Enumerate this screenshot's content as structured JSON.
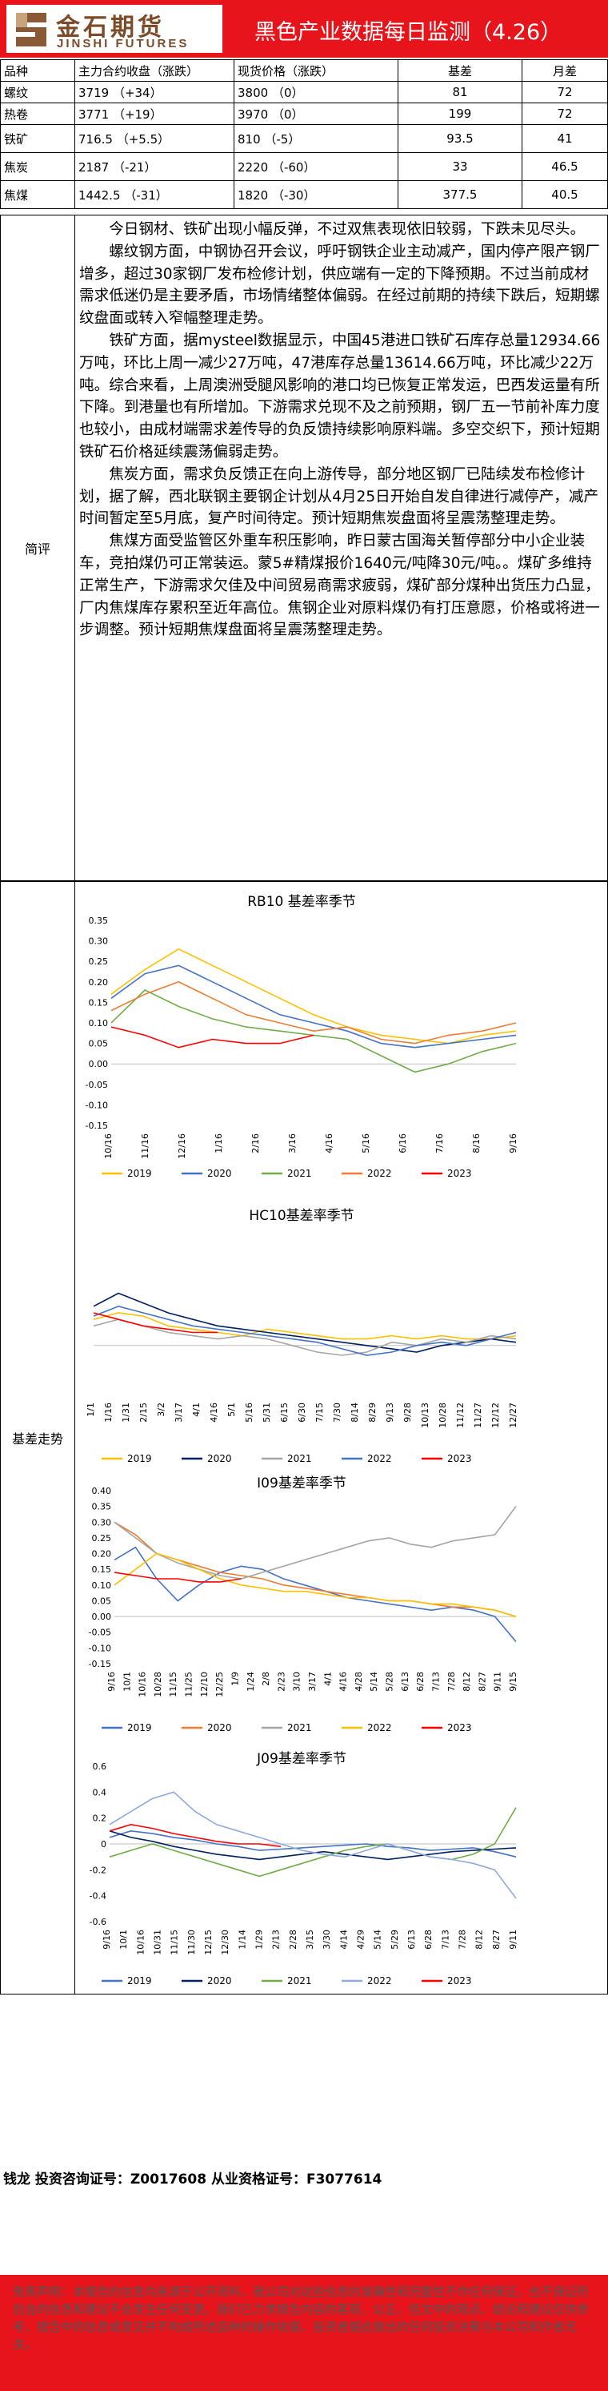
{
  "header": {
    "logo_cn": "金石期货",
    "logo_en": "JINSHI FUTURES",
    "title": "黑色产业数据每日监测（4.26）"
  },
  "table": {
    "headers": [
      "品种",
      "主力合约收盘（涨跌）",
      "现货价格（涨跌）",
      "基差",
      "月差"
    ],
    "rows": [
      [
        "螺纹",
        "3719 （+34）",
        "3800 （0）",
        "81",
        "72"
      ],
      [
        "热卷",
        "3771 （+19）",
        "3970 （0）",
        "199",
        "72"
      ],
      [
        "铁矿",
        "716.5 （+5.5）",
        "810 （-5）",
        "93.5",
        "41"
      ],
      [
        "焦炭",
        "2187 （-21）",
        "2220 （-60）",
        "33",
        "46.5"
      ],
      [
        "焦煤",
        "1442.5 （-31）",
        "1820 （-30）",
        "377.5",
        "40.5"
      ]
    ]
  },
  "comment": {
    "label": "简评",
    "paragraphs": [
      "今日钢材、铁矿出现小幅反弹，不过双焦表现依旧较弱，下跌未见尽头。",
      "螺纹钢方面，中钢协召开会议，呼吁钢铁企业主动减产，国内停产限产钢厂增多，超过30家钢厂发布检修计划，供应端有一定的下降预期。不过当前成材需求低迷仍是主要矛盾，市场情绪整体偏弱。在经过前期的持续下跌后，短期螺纹盘面或转入窄幅整理走势。",
      "铁矿方面，据mysteel数据显示，中国45港进口铁矿石库存总量12934.66万吨，环比上周一减少27万吨，47港库存总量13614.66万吨，环比减少22万吨。综合来看，上周澳洲受腿风影响的港口均已恢复正常发运，巴西发运量有所下降。到港量也有所增加。下游需求兑现不及之前预期，钢厂五一节前补库力度也较小，由成材端需求差传导的负反馈持续影响原料端。多空交织下，预计短期铁矿石价格延续震荡偏弱走势。",
      "焦炭方面，需求负反馈正在向上游传导，部分地区钢厂已陆续发布检修计划，据了解，西北联钢主要钢企计划从4月25日开始自发自律进行减停产，减产时间暂定至5月底，复产时间待定。预计短期焦炭盘面将呈震荡整理走势。",
      "焦煤方面受监管区外重车积压影响，昨日蒙古国海关暂停部分中小企业装车，竞拍煤仍可正常装运。蒙5#精煤报价1640元/吨降30元/吨。。煤矿多维持正常生产，下游需求欠佳及中间贸易商需求疲弱，煤矿部分煤种出货压力凸显，厂内焦煤库存累积至近年高位。焦钢企业对原料煤仍有打压意愿，价格或将进一步调整。预计短期焦煤盘面将呈震荡整理走势。"
    ]
  },
  "charts_label": "基差走势",
  "chart_data": [
    {
      "type": "line",
      "title": "RB10 基差率季节",
      "ylim": [
        -0.15,
        0.35
      ],
      "yticks": [
        "-0.15",
        "-0.10",
        "-0.05",
        "0.00",
        "0.05",
        "0.10",
        "0.15",
        "0.20",
        "0.25",
        "0.30",
        "0.35"
      ],
      "xticks": [
        "10/16",
        "11/16",
        "12/16",
        "1/16",
        "2/16",
        "3/16",
        "4/16",
        "5/16",
        "6/16",
        "7/16",
        "8/16",
        "9/16"
      ],
      "series": [
        {
          "name": "2019",
          "color": "#ffc000",
          "values": [
            0.17,
            0.23,
            0.28,
            0.24,
            0.2,
            0.16,
            0.12,
            0.09,
            0.07,
            0.06,
            0.05,
            0.07,
            0.08
          ]
        },
        {
          "name": "2020",
          "color": "#4472c4",
          "values": [
            0.16,
            0.22,
            0.24,
            0.2,
            0.16,
            0.12,
            0.1,
            0.08,
            0.05,
            0.04,
            0.05,
            0.06,
            0.07
          ]
        },
        {
          "name": "2021",
          "color": "#70ad47",
          "values": [
            0.1,
            0.18,
            0.14,
            0.11,
            0.09,
            0.08,
            0.07,
            0.06,
            0.02,
            -0.02,
            0.0,
            0.03,
            0.05
          ]
        },
        {
          "name": "2022",
          "color": "#ed7d31",
          "values": [
            0.13,
            0.17,
            0.2,
            0.16,
            0.12,
            0.1,
            0.08,
            0.09,
            0.06,
            0.05,
            0.07,
            0.08,
            0.1
          ]
        },
        {
          "name": "2023",
          "color": "#ff0000",
          "values": [
            0.09,
            0.07,
            0.04,
            0.06,
            0.05,
            0.05,
            0.07
          ]
        }
      ]
    },
    {
      "type": "line",
      "title": "HC10基差率季节",
      "ylim": [
        -0.15,
        0.35
      ],
      "xticks": [
        "1/1",
        "1/16",
        "1/31",
        "2/15",
        "3/2",
        "3/17",
        "4/1",
        "4/16",
        "5/1",
        "5/16",
        "5/31",
        "6/15",
        "6/30",
        "7/15",
        "7/30",
        "8/14",
        "8/29",
        "9/13",
        "9/28",
        "10/13",
        "10/28",
        "11/12",
        "11/27",
        "12/12",
        "12/27"
      ],
      "series": [
        {
          "name": "2019",
          "color": "#ffc000",
          "values": [
            0.08,
            0.1,
            0.09,
            0.06,
            0.05,
            0.04,
            0.03,
            0.05,
            0.04,
            0.03,
            0.02,
            0.02,
            0.03,
            0.02,
            0.03,
            0.02,
            0.02,
            0.03
          ]
        },
        {
          "name": "2020",
          "color": "#002060",
          "values": [
            0.12,
            0.16,
            0.13,
            0.1,
            0.08,
            0.06,
            0.05,
            0.04,
            0.03,
            0.02,
            0.01,
            0.0,
            -0.01,
            -0.02,
            0.0,
            0.01,
            0.02,
            0.01
          ]
        },
        {
          "name": "2021",
          "color": "#a5a5a5",
          "values": [
            0.06,
            0.08,
            0.06,
            0.04,
            0.03,
            0.02,
            0.03,
            0.02,
            0.0,
            -0.02,
            -0.03,
            -0.02,
            0.01,
            0.0,
            0.02,
            0.01,
            0.03,
            0.02
          ]
        },
        {
          "name": "2022",
          "color": "#4472c4",
          "values": [
            0.09,
            0.12,
            0.1,
            0.08,
            0.06,
            0.05,
            0.04,
            0.03,
            0.02,
            0.01,
            -0.01,
            -0.03,
            -0.02,
            0.0,
            0.01,
            0.0,
            0.02,
            0.04
          ]
        },
        {
          "name": "2023",
          "color": "#ff0000",
          "values": [
            0.1,
            0.08,
            0.06,
            0.05,
            0.04,
            0.04
          ]
        }
      ]
    },
    {
      "type": "line",
      "title": "I09基差率季节",
      "ylim": [
        -0.15,
        0.4
      ],
      "yticks": [
        "-0.15",
        "-0.10",
        "-0.05",
        "0.00",
        "0.05",
        "0.10",
        "0.15",
        "0.20",
        "0.25",
        "0.30",
        "0.35",
        "0.40"
      ],
      "xticks": [
        "9/16",
        "10/1",
        "10/16",
        "10/28",
        "11/15",
        "11/25",
        "12/10",
        "12/25",
        "1/9",
        "1/24",
        "2/8",
        "2/23",
        "3/10",
        "3/17",
        "4/1",
        "4/16",
        "4/28",
        "5/14",
        "5/28",
        "6/13",
        "6/28",
        "7/13",
        "7/28",
        "8/12",
        "8/27",
        "9/11",
        "9/15"
      ],
      "series": [
        {
          "name": "2019",
          "color": "#4472c4",
          "values": [
            0.18,
            0.22,
            0.12,
            0.05,
            0.1,
            0.14,
            0.16,
            0.15,
            0.12,
            0.1,
            0.08,
            0.06,
            0.05,
            0.04,
            0.03,
            0.02,
            0.03,
            0.02,
            0.0,
            -0.08
          ]
        },
        {
          "name": "2020",
          "color": "#ed7d31",
          "values": [
            0.3,
            0.26,
            0.2,
            0.18,
            0.16,
            0.14,
            0.13,
            0.12,
            0.1,
            0.09,
            0.08,
            0.07,
            0.06,
            0.05,
            0.05,
            0.04,
            0.03,
            0.03,
            0.02,
            0.0
          ]
        },
        {
          "name": "2021",
          "color": "#a5a5a5",
          "values": [
            0.3,
            0.25,
            0.2,
            0.17,
            0.15,
            0.13,
            0.12,
            0.14,
            0.16,
            0.18,
            0.2,
            0.22,
            0.24,
            0.25,
            0.23,
            0.22,
            0.24,
            0.25,
            0.26,
            0.35
          ]
        },
        {
          "name": "2022",
          "color": "#ffc000",
          "values": [
            0.1,
            0.15,
            0.2,
            0.18,
            0.15,
            0.12,
            0.1,
            0.09,
            0.08,
            0.08,
            0.07,
            0.06,
            0.06,
            0.05,
            0.05,
            0.04,
            0.04,
            0.03,
            0.02,
            0.0
          ]
        },
        {
          "name": "2023",
          "color": "#ff0000",
          "values": [
            0.14,
            0.13,
            0.12,
            0.12,
            0.11,
            0.11,
            0.12
          ]
        }
      ]
    },
    {
      "type": "line",
      "title": "J09基差率季节",
      "ylim": [
        -0.6,
        0.6
      ],
      "yticks": [
        "-0.6",
        "-0.4",
        "-0.2",
        "0",
        "0.2",
        "0.4",
        "0.6"
      ],
      "xticks": [
        "9/16",
        "10/1",
        "10/16",
        "10/31",
        "11/15",
        "11/30",
        "12/15",
        "12/30",
        "1/14",
        "1/29",
        "2/13",
        "2/28",
        "3/15",
        "3/30",
        "4/14",
        "4/29",
        "5/14",
        "5/29",
        "6/13",
        "6/28",
        "7/13",
        "7/28",
        "8/12",
        "8/27",
        "9/11"
      ],
      "series": [
        {
          "name": "2019",
          "color": "#4472c4",
          "values": [
            0.05,
            0.1,
            0.08,
            0.05,
            0.03,
            0.0,
            -0.02,
            -0.05,
            -0.04,
            -0.03,
            -0.02,
            -0.01,
            0.0,
            -0.02,
            -0.03,
            -0.05,
            -0.04,
            -0.03,
            -0.06,
            -0.1
          ]
        },
        {
          "name": "2020",
          "color": "#002060",
          "values": [
            0.1,
            0.05,
            0.02,
            -0.02,
            -0.05,
            -0.08,
            -0.1,
            -0.12,
            -0.1,
            -0.08,
            -0.06,
            -0.08,
            -0.1,
            -0.12,
            -0.1,
            -0.08,
            -0.06,
            -0.05,
            -0.04,
            -0.03
          ]
        },
        {
          "name": "2021",
          "color": "#70ad47",
          "values": [
            -0.1,
            -0.05,
            0.0,
            -0.05,
            -0.1,
            -0.15,
            -0.2,
            -0.25,
            -0.2,
            -0.15,
            -0.1,
            -0.05,
            -0.02,
            0.0,
            -0.05,
            -0.1,
            -0.12,
            -0.08,
            0.0,
            0.28
          ]
        },
        {
          "name": "2022",
          "color": "#8faadc",
          "values": [
            0.15,
            0.25,
            0.35,
            0.4,
            0.25,
            0.15,
            0.1,
            0.05,
            0.0,
            -0.05,
            -0.08,
            -0.1,
            -0.05,
            0.0,
            -0.05,
            -0.1,
            -0.12,
            -0.15,
            -0.2,
            -0.42
          ]
        },
        {
          "name": "2023",
          "color": "#ff0000",
          "values": [
            0.1,
            0.15,
            0.12,
            0.08,
            0.05,
            0.02,
            0.0,
            0.0,
            -0.02
          ]
        }
      ]
    }
  ],
  "footer": {
    "contact": "钱龙  投资咨询证号：Z0017608  从业资格证号：F3077614",
    "disclaimer": "免责声明：本报告的信息均来源于公开资料，我公司对这些信息的准确性和完整性不作任何保证，也不保证所包含的信息和建议不会发生任何变更。我们已力求报告内容的客观、公正，但文中的观点、结论和建议仅供参考，报告中的信息或意见并不构成所述品种的操作依据，投资者据此做出的任何投资决策与本公司和作者无关。"
  }
}
